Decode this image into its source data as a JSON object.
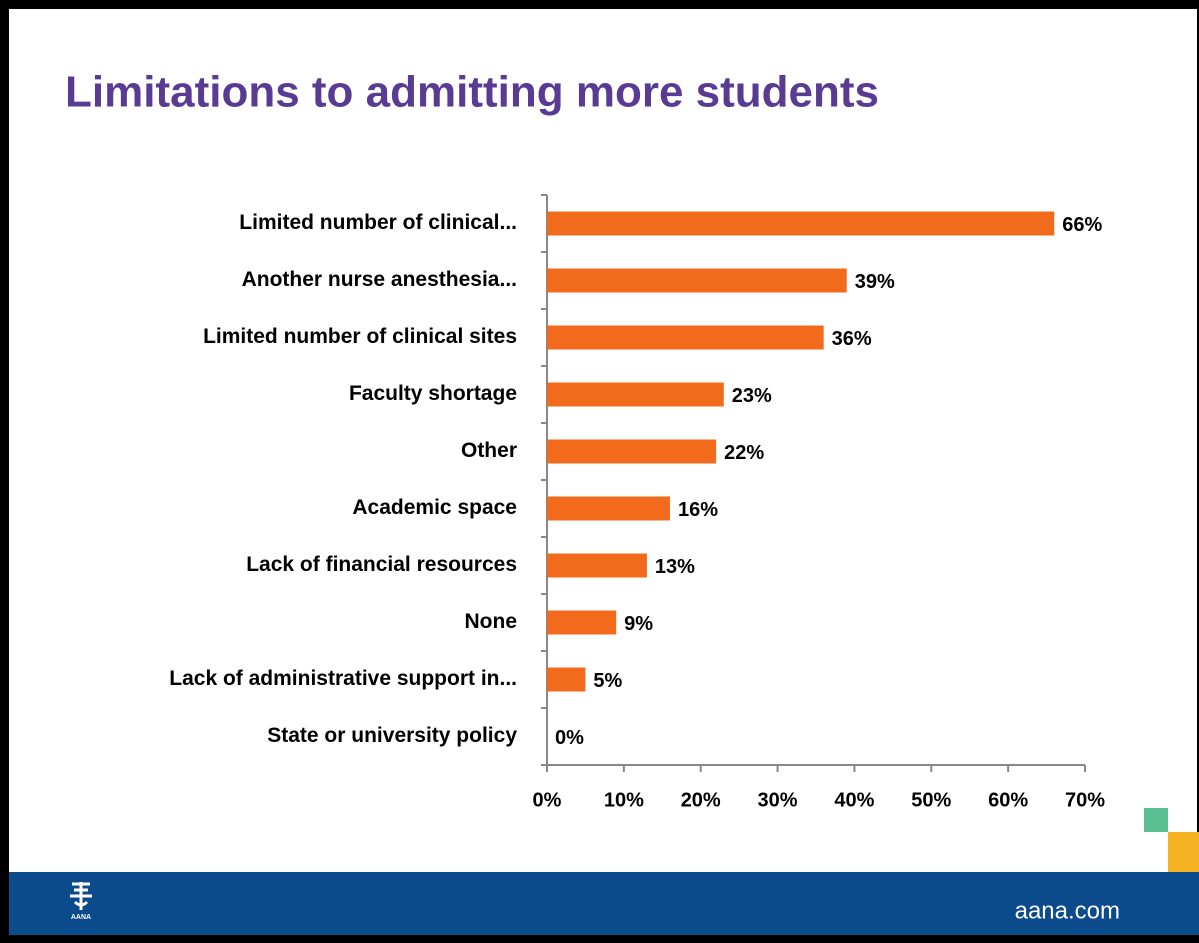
{
  "chart_data": {
    "type": "bar",
    "orientation": "horizontal",
    "title": "Limitations to admitting more students",
    "categories": [
      "Limited number of clinical...",
      "Another nurse anesthesia...",
      "Limited number of clinical sites",
      "Faculty shortage",
      "Other",
      "Academic space",
      "Lack of financial resources",
      "None",
      "Lack of administrative support in...",
      "State or university policy"
    ],
    "values": [
      66,
      39,
      36,
      23,
      22,
      16,
      13,
      9,
      5,
      0
    ],
    "value_labels": [
      "66%",
      "39%",
      "36%",
      "23%",
      "22%",
      "16%",
      "13%",
      "9%",
      "5%",
      "0%"
    ],
    "color": "#f26b1d",
    "xlim": [
      0,
      70
    ],
    "xticks": [
      {
        "value": 0,
        "label": "0%"
      },
      {
        "value": 10,
        "label": "10%"
      },
      {
        "value": 20,
        "label": "20%"
      },
      {
        "value": 30,
        "label": "30%"
      },
      {
        "value": 40,
        "label": "40%"
      },
      {
        "value": 50,
        "label": "50%"
      },
      {
        "value": 60,
        "label": "60%"
      },
      {
        "value": 70,
        "label": "70%"
      }
    ],
    "grid": false
  },
  "footer": {
    "site": "aana.com",
    "logo_text": "AANA"
  }
}
